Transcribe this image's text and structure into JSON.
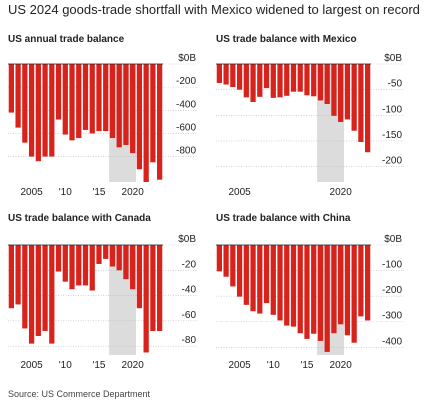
{
  "title": "US 2024 goods-trade shortfall with Mexico widened to largest on record",
  "source": "Source: US Commerce Department",
  "chart_data": [
    {
      "type": "bar",
      "title": "US annual trade balance",
      "color": "#d8231c",
      "shade_color": "#dcdcdc",
      "shaded_range": [
        2017,
        2020
      ],
      "x": [
        2002,
        2003,
        2004,
        2005,
        2006,
        2007,
        2008,
        2009,
        2010,
        2011,
        2012,
        2013,
        2014,
        2015,
        2016,
        2017,
        2018,
        2019,
        2020,
        2021,
        2022,
        2023,
        2024
      ],
      "values": [
        -420,
        -550,
        -680,
        -800,
        -840,
        -800,
        -800,
        -480,
        -610,
        -660,
        -640,
        -570,
        -600,
        -580,
        -580,
        -640,
        -720,
        -700,
        -770,
        -910,
        -1020,
        -850,
        -1000
      ],
      "ylim": [
        -1020,
        0
      ],
      "yticks": [
        {
          "value": 0,
          "label": "$0B"
        },
        -200,
        -400,
        -600,
        -800
      ],
      "xticks": [
        2005,
        {
          "value": 2010,
          "label": "'10"
        },
        {
          "value": 2015,
          "label": "'15"
        },
        2020
      ],
      "grid": true
    },
    {
      "type": "bar",
      "title": "US trade balance with Mexico",
      "color": "#d8231c",
      "shade_color": "#dcdcdc",
      "shaded_range": [
        2017,
        2020
      ],
      "x": [
        2002,
        2003,
        2004,
        2005,
        2006,
        2007,
        2008,
        2009,
        2010,
        2011,
        2012,
        2013,
        2014,
        2015,
        2016,
        2017,
        2018,
        2019,
        2020,
        2021,
        2022,
        2023,
        2024
      ],
      "values": [
        -37,
        -40,
        -45,
        -50,
        -65,
        -74,
        -64,
        -47,
        -66,
        -65,
        -62,
        -54,
        -54,
        -61,
        -63,
        -71,
        -78,
        -101,
        -113,
        -108,
        -130,
        -152,
        -172
      ],
      "ylim": [
        -230,
        0
      ],
      "yticks": [
        {
          "value": 0,
          "label": "$0B"
        },
        -50,
        -100,
        -150,
        -200
      ],
      "xticks": [
        2005,
        2020
      ],
      "grid": true
    },
    {
      "type": "bar",
      "title": "US trade balance with Canada",
      "color": "#d8231c",
      "shade_color": "#dcdcdc",
      "shaded_range": [
        2017,
        2020
      ],
      "x": [
        2002,
        2003,
        2004,
        2005,
        2006,
        2007,
        2008,
        2009,
        2010,
        2011,
        2012,
        2013,
        2014,
        2015,
        2016,
        2017,
        2018,
        2019,
        2020,
        2021,
        2022,
        2023,
        2024
      ],
      "values": [
        -50,
        -47,
        -66,
        -78,
        -72,
        -68,
        -78,
        -21,
        -29,
        -35,
        -32,
        -32,
        -36,
        -15,
        -11,
        -17,
        -20,
        -27,
        -35,
        -50,
        -85,
        -68,
        -68
      ],
      "ylim": [
        -87,
        0
      ],
      "yticks": [
        {
          "value": 0,
          "label": "$0B"
        },
        -20,
        -40,
        -60,
        -80
      ],
      "xticks": [
        2005,
        {
          "value": 2010,
          "label": "'10"
        },
        {
          "value": 2015,
          "label": "'15"
        },
        2020
      ],
      "grid": true
    },
    {
      "type": "bar",
      "title": "US trade balance with China",
      "color": "#d8231c",
      "shade_color": "#dcdcdc",
      "shaded_range": [
        2017,
        2020
      ],
      "x": [
        2002,
        2003,
        2004,
        2005,
        2006,
        2007,
        2008,
        2009,
        2010,
        2011,
        2012,
        2013,
        2014,
        2015,
        2016,
        2017,
        2018,
        2019,
        2020,
        2021,
        2022,
        2023,
        2024
      ],
      "values": [
        -103,
        -124,
        -162,
        -202,
        -234,
        -259,
        -268,
        -227,
        -273,
        -295,
        -315,
        -319,
        -345,
        -367,
        -347,
        -375,
        -418,
        -345,
        -310,
        -353,
        -382,
        -279,
        -295
      ],
      "ylim": [
        -430,
        0
      ],
      "yticks": [
        {
          "value": 0,
          "label": "$0B"
        },
        -100,
        -200,
        -300,
        -400
      ],
      "xticks": [
        2005,
        {
          "value": 2010,
          "label": "'10"
        },
        {
          "value": 2015,
          "label": "'15"
        },
        2020
      ],
      "grid": true
    }
  ]
}
